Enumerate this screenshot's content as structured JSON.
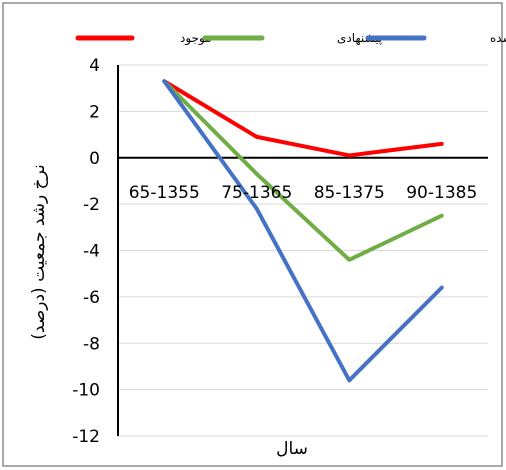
{
  "chart_data": {
    "type": "line",
    "categories": [
      "65-1355",
      "75-1365",
      "85-1375",
      "90-1385"
    ],
    "series": [
      {
        "name": "موجود",
        "color": "#ff0000",
        "values": [
          3.3,
          0.9,
          0.1,
          0.6
        ]
      },
      {
        "name": "پیشنهادی",
        "color": "#70ad47",
        "values": [
          3.3,
          -0.7,
          -4.4,
          -2.5
        ]
      },
      {
        "name": "کالیبره شده",
        "color": "#4472c4",
        "values": [
          3.3,
          -2.2,
          -9.6,
          -5.6
        ]
      }
    ],
    "yticks": [
      "4",
      "2",
      "0",
      "-2",
      "-4",
      "-6",
      "-8",
      "-10",
      "-12"
    ],
    "ylim": [
      -12,
      4
    ],
    "xlabel": "سال",
    "ylabel": "نرخ رشد جمعیت (درصد)",
    "grid": true,
    "legend_position": "top"
  }
}
